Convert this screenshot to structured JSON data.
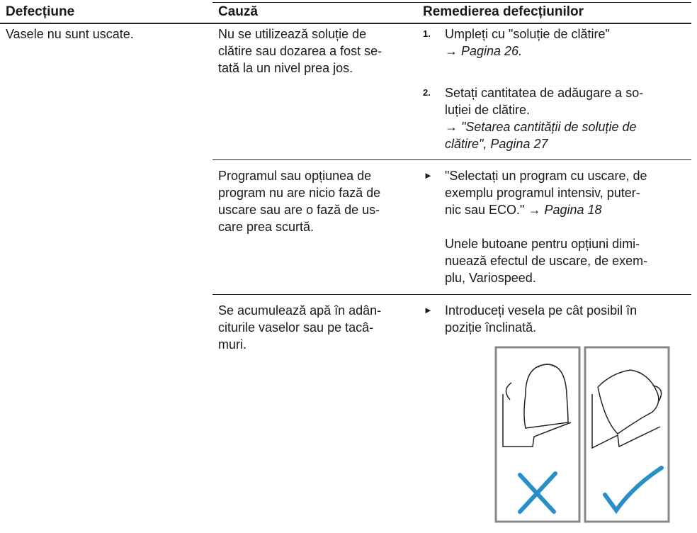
{
  "header": [
    "Defecțiune",
    "Cauză",
    "Remedierea defecțiunilor"
  ],
  "rows": [
    {
      "fault": "Vasele nu sunt uscate.",
      "cause": [
        "Nu se utilizează soluție de",
        "clătire sau dozarea a fost se-",
        "tată la un nivel prea jos."
      ],
      "remedy": [
        {
          "marker": "1.",
          "lines": [
            "Umpleți cu \"soluție de clătire\""
          ],
          "link": [
            "→ Pagina 26."
          ]
        },
        {
          "marker": "2.",
          "lines": [
            "Setați cantitatea de adăugare a so-",
            "luției de clătire."
          ],
          "link": [
            "→ \"Setarea cantității de soluție de",
            "clătire\", Pagina 27"
          ]
        }
      ]
    },
    {
      "cause": [
        "Programul sau opțiunea de",
        "program nu are nicio fază de",
        "uscare sau are o fază de us-",
        "care prea scurtă."
      ],
      "remedy": [
        {
          "marker": "►",
          "lines": [
            "\"Selectați un program cu uscare, de",
            "exemplu programul intensiv, puter-",
            "nic sau ECO.\""
          ],
          "link": [
            "→ Pagina 18"
          ]
        },
        {
          "lines": [
            "Unele butoane pentru opțiuni dimi-",
            "nuează efectul de uscare, de exem-",
            "plu, Variospeed."
          ]
        }
      ]
    },
    {
      "cause": [
        "Se acumulează apă în adân-",
        "citurile vaselor sau pe tacâ-",
        "muri."
      ],
      "remedy": [
        {
          "marker": "►",
          "lines": [
            "Introduceți vesela pe cât posibil în",
            "poziție înclinată."
          ]
        }
      ]
    }
  ]
}
